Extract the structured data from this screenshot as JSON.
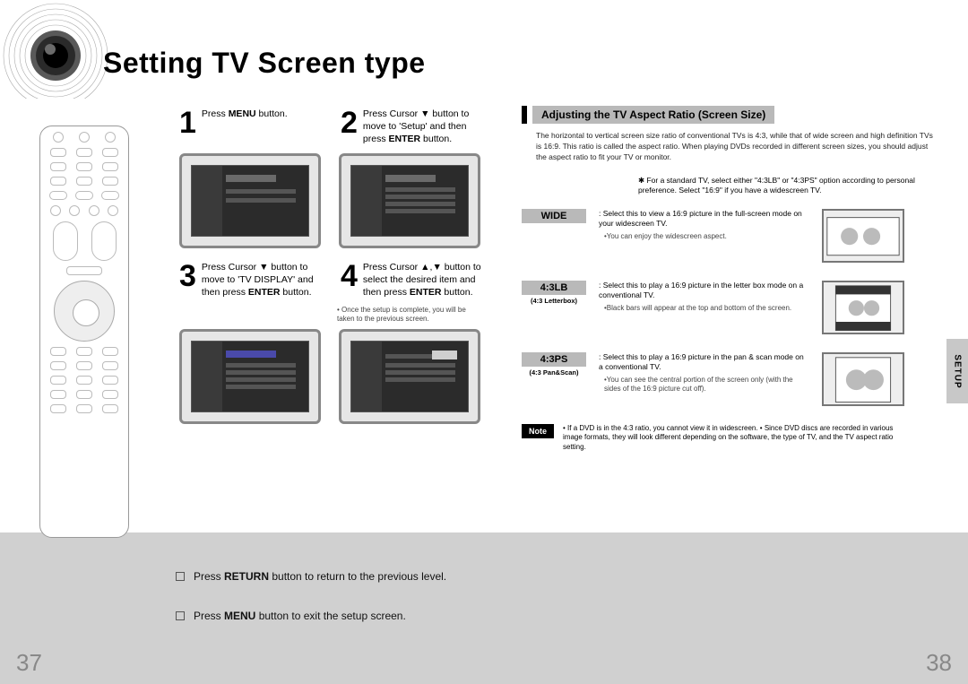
{
  "colors": {
    "grey_band": "#d0d0d0",
    "label_bg": "#b9b9b9",
    "crt_frame": "#888",
    "crt_screen": "#2b2b2b",
    "thumb_border": "#777",
    "page_num": "#888"
  },
  "title": "Setting TV Screen type",
  "steps": [
    {
      "num": "1",
      "text_html": "Press <b>MENU</b> button."
    },
    {
      "num": "2",
      "text_html": "Press Cursor <span class='arrow'>▼</span> button to move to 'Setup' and then press <b>ENTER</b> button."
    },
    {
      "num": "3",
      "text_html": "Press Cursor <span class='arrow'>▼</span> button to move to 'TV DISPLAY' and then press <b>ENTER</b> button."
    },
    {
      "num": "4",
      "text_html": "Press Cursor <span class='arrow'>▲</span>,<span class='arrow'>▼</span> button to select the desired item and then press <b>ENTER</b> button."
    }
  ],
  "step_note": "• Once the setup is complete, you will be taken to the previous screen.",
  "right": {
    "heading": "Adjusting the TV Aspect Ratio (Screen Size)",
    "description": "The horizontal to vertical screen size ratio of conventional TVs is 4:3, while that of wide screen and high definition TVs is 16:9. This ratio is called the aspect ratio. When playing DVDs recorded in different screen sizes, you should adjust the aspect ratio to fit your TV or monitor.",
    "star_note": "✱ For a standard TV, select either \"4:3LB\" or \"4:3PS\" option according to personal preference. Select \"16:9\" if you have a widescreen TV.",
    "options": [
      {
        "label": "WIDE",
        "sublabel": "",
        "text": ": Select this to view a 16:9 picture in the full-screen mode on your widescreen TV.",
        "bullet": "•You can enjoy the widescreen aspect.",
        "thumb": "wide"
      },
      {
        "label": "4:3LB",
        "sublabel": "(4:3 Letterbox)",
        "text": ": Select this to play a 16:9 picture in the letter box mode on a conventional TV.",
        "bullet": "•Black bars will appear at the top and bottom of the screen.",
        "thumb": "lb"
      },
      {
        "label": "4:3PS",
        "sublabel": "(4:3 Pan&Scan)",
        "text": ": Select this to play a 16:9 picture in the pan & scan mode on a conventional TV.",
        "bullet": "•You can see the central portion of the screen only (with the sides of the 16:9 picture cut off).",
        "thumb": "ps"
      }
    ],
    "note_label": "Note",
    "note_text": "• If a DVD is in the 4:3 ratio, you cannot view it in widescreen.\n• Since DVD discs are recorded in various image formats, they will look different depending on the software, the type of TV, and the TV aspect ratio setting."
  },
  "side_tab": "SETUP",
  "tips": {
    "t1_html": "Press <b>RETURN</b> button to return to the previous level.",
    "t2_html": "Press <b>MENU</b> button to exit the setup screen."
  },
  "page_left": "37",
  "page_right": "38"
}
